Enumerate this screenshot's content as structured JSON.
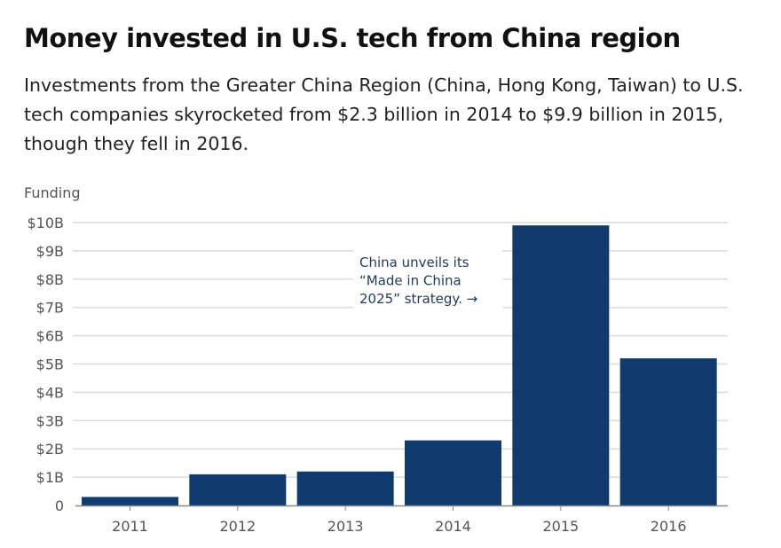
{
  "title": "Money invested in U.S. tech from China region",
  "subtitle": "Investments from the Greater China Region (China, Hong Kong, Taiwan) to U.S. tech companies skyrocketed from $2.3 billion in 2014 to $9.9 billion in 2015, though they fell in 2016.",
  "chart_data": {
    "type": "bar",
    "ylabel": "Funding",
    "categories": [
      "2011",
      "2012",
      "2013",
      "2014",
      "2015",
      "2016"
    ],
    "values": [
      0.3,
      1.1,
      1.2,
      2.3,
      9.9,
      5.2
    ],
    "unit": "billion USD",
    "ylim": [
      0,
      10
    ],
    "yticks": [
      "0",
      "$1B",
      "$2B",
      "$3B",
      "$4B",
      "$5B",
      "$6B",
      "$7B",
      "$8B",
      "$9B",
      "$10B"
    ],
    "grid": true,
    "bar_color": "#0f3b6e",
    "annotation": [
      "China unveils its",
      "“Made in China",
      "2025” strategy. →"
    ]
  }
}
